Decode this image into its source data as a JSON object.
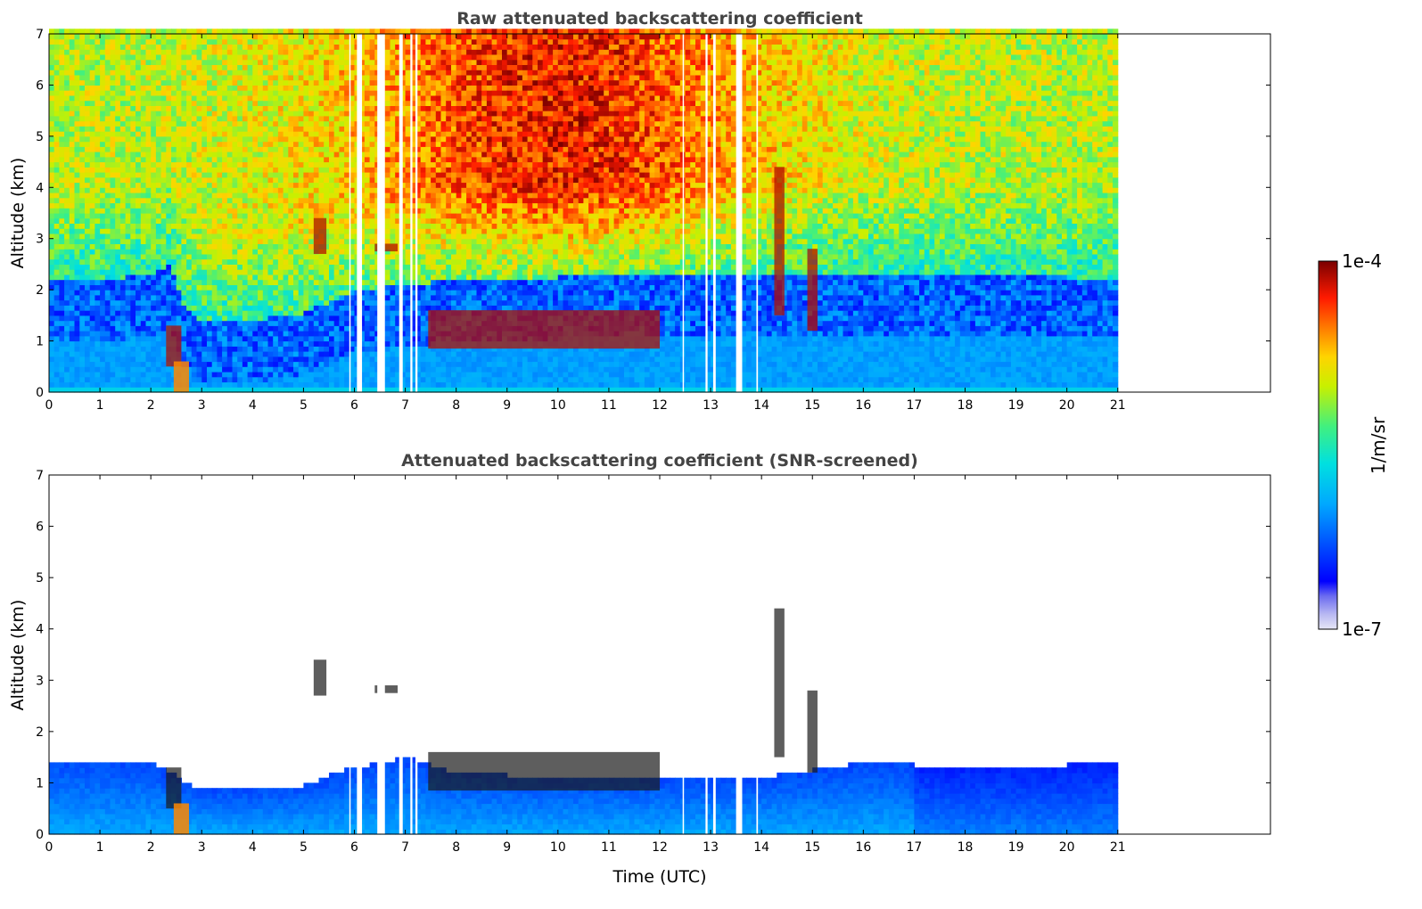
{
  "chart_data": [
    {
      "type": "heatmap",
      "title": "Raw attenuated backscattering coefficient",
      "xlabel": "",
      "ylabel": "Altitude (km)",
      "xlim": [
        0,
        24
      ],
      "ylim": [
        0,
        7
      ],
      "xticks": [
        0,
        1,
        2,
        3,
        4,
        5,
        6,
        7,
        8,
        9,
        10,
        11,
        12,
        13,
        14,
        15,
        16,
        17,
        18,
        19,
        20,
        21
      ],
      "yticks": [
        0,
        1,
        2,
        3,
        4,
        5,
        6,
        7
      ],
      "data_end_time": 21,
      "data_gaps": [
        [
          5.9,
          5.92
        ],
        [
          6.05,
          6.15
        ],
        [
          6.45,
          6.6
        ],
        [
          6.88,
          6.95
        ],
        [
          7.1,
          7.14
        ],
        [
          7.2,
          7.24
        ],
        [
          12.45,
          12.47
        ],
        [
          12.9,
          12.94
        ],
        [
          13.05,
          13.1
        ],
        [
          13.5,
          13.62
        ],
        [
          13.9,
          13.93
        ]
      ],
      "boundary_layer": [
        [
          0,
          1.0
        ],
        [
          1,
          1.0
        ],
        [
          2,
          1.1
        ],
        [
          2.4,
          1.3
        ],
        [
          2.7,
          0.4
        ],
        [
          3,
          0.2
        ],
        [
          4,
          0.2
        ],
        [
          5,
          0.35
        ],
        [
          5.6,
          0.6
        ],
        [
          6,
          0.8
        ],
        [
          7,
          0.9
        ],
        [
          8,
          1.0
        ],
        [
          10,
          1.05
        ],
        [
          12,
          1.1
        ],
        [
          14,
          1.15
        ],
        [
          16,
          1.15
        ],
        [
          18,
          1.1
        ],
        [
          20,
          1.05
        ],
        [
          21,
          1.05
        ]
      ],
      "cloud_features": [
        {
          "t": [
            2.3,
            2.6
          ],
          "z": [
            0.5,
            1.3
          ]
        },
        {
          "t": [
            5.2,
            5.45
          ],
          "z": [
            2.7,
            3.4
          ]
        },
        {
          "t": [
            6.4,
            6.85
          ],
          "z": [
            2.75,
            2.9
          ]
        },
        {
          "t": [
            7.45,
            12.0
          ],
          "z": [
            0.85,
            1.6
          ]
        },
        {
          "t": [
            14.25,
            14.45
          ],
          "z": [
            1.5,
            4.4
          ]
        },
        {
          "t": [
            14.9,
            15.1
          ],
          "z": [
            1.2,
            2.8
          ]
        }
      ],
      "aerosol_plume": {
        "t": [
          2.45,
          2.75
        ],
        "z": [
          0.0,
          0.6
        ]
      }
    },
    {
      "type": "heatmap",
      "title": "Attenuated backscattering coefficient (SNR-screened)",
      "xlabel": "Time (UTC)",
      "ylabel": "Altitude (km)",
      "xlim": [
        0,
        24
      ],
      "ylim": [
        0,
        7
      ],
      "xticks": [
        0,
        1,
        2,
        3,
        4,
        5,
        6,
        7,
        8,
        9,
        10,
        11,
        12,
        13,
        14,
        15,
        16,
        17,
        18,
        19,
        20,
        21
      ],
      "yticks": [
        0,
        1,
        2,
        3,
        4,
        5,
        6,
        7
      ],
      "data_end_time": 21,
      "screened_top": [
        [
          0,
          1.45
        ],
        [
          1,
          1.45
        ],
        [
          2,
          1.4
        ],
        [
          2.4,
          1.2
        ],
        [
          2.9,
          0.9
        ],
        [
          4,
          0.9
        ],
        [
          5,
          0.95
        ],
        [
          5.8,
          1.25
        ],
        [
          7,
          1.5
        ],
        [
          8,
          1.2
        ],
        [
          10,
          1.1
        ],
        [
          12,
          1.1
        ],
        [
          14,
          1.1
        ],
        [
          15,
          1.25
        ],
        [
          16,
          1.4
        ],
        [
          18,
          1.3
        ],
        [
          20,
          1.35
        ],
        [
          21,
          1.4
        ]
      ]
    }
  ],
  "colorbar": {
    "label": "1/m/sr",
    "max_label": "1e-4",
    "min_label": "1e-7",
    "scale": "log",
    "range": [
      1e-07,
      0.0001
    ],
    "colormap": "jet"
  }
}
